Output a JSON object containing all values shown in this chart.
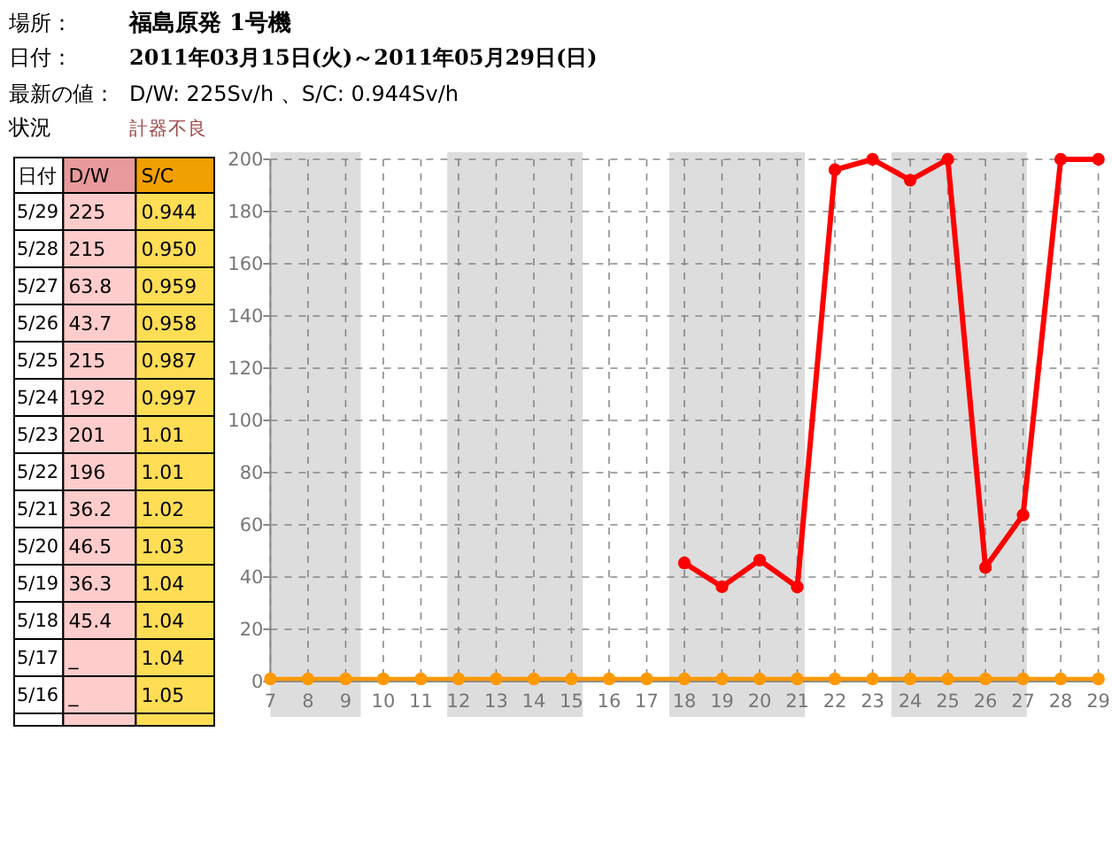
{
  "chart_data": [
    {
      "type": "other",
      "annotations": [
        "場所：",
        "福島原発 1号機",
        "日付：",
        "2011年03月15日(火)～2011年05月29日(日)",
        "最新の値：",
        "D/W: 225Sv/h 、S/C: 0.944Sv/h",
        "状況",
        "計器不良"
      ]
    },
    {
      "type": "heatmap",
      "ylabel": "日付",
      "categories": [
        "D/W",
        "S/C"
      ],
      "y_categories": [
        "5/29",
        "5/28",
        "5/27",
        "5/26",
        "5/25",
        "5/24",
        "5/23",
        "5/22",
        "5/21",
        "5/20",
        "5/19",
        "5/18",
        "5/17",
        "5/16"
      ],
      "cells": [
        [
          225,
          0.944
        ],
        [
          215,
          0.95
        ],
        [
          63.8,
          0.959
        ],
        [
          43.7,
          0.958
        ],
        [
          215,
          0.987
        ],
        [
          192,
          0.997
        ],
        [
          201,
          1.01
        ],
        [
          196,
          1.01
        ],
        [
          36.2,
          1.02
        ],
        [
          46.5,
          1.03
        ],
        [
          36.3,
          1.04
        ],
        [
          45.4,
          1.04
        ],
        [
          null,
          1.04
        ],
        [
          null,
          1.05
        ]
      ],
      "cell_labels": [
        [
          "225",
          "0.944"
        ],
        [
          "215",
          "0.950"
        ],
        [
          "63.8",
          "0.959"
        ],
        [
          "43.7",
          "0.958"
        ],
        [
          "215",
          "0.987"
        ],
        [
          "192",
          "0.997"
        ],
        [
          "201",
          "1.01"
        ],
        [
          "196",
          "1.01"
        ],
        [
          "36.2",
          "1.02"
        ],
        [
          "46.5",
          "1.03"
        ],
        [
          "36.3",
          "1.04"
        ],
        [
          "45.4",
          "1.04"
        ],
        [
          "_",
          "1.04"
        ],
        [
          "_",
          "1.05"
        ]
      ]
    },
    {
      "type": "line",
      "x": [
        7,
        8,
        9,
        10,
        11,
        12,
        13,
        14,
        15,
        16,
        17,
        18,
        19,
        20,
        21,
        22,
        23,
        24,
        25,
        26,
        27,
        28,
        29
      ],
      "series": [
        {
          "color": "#ff0000",
          "values": [
            null,
            null,
            null,
            null,
            null,
            null,
            null,
            null,
            null,
            null,
            null,
            45.4,
            36.3,
            46.5,
            36.2,
            196,
            200,
            192,
            200,
            43.7,
            63.8,
            200,
            200
          ]
        },
        {
          "color": "#ff9900",
          "values": [
            1,
            1,
            1,
            1,
            1,
            1,
            1,
            1,
            1,
            1,
            1,
            1,
            1,
            1,
            1,
            1,
            1,
            1,
            1,
            1,
            1,
            1,
            1
          ]
        }
      ],
      "xlim": [
        7,
        29
      ],
      "xticks": [
        7,
        8,
        9,
        10,
        11,
        12,
        13,
        14,
        15,
        16,
        17,
        18,
        19,
        20,
        21,
        22,
        23,
        24,
        25,
        26,
        27,
        28,
        29
      ],
      "ylim": [
        0,
        200
      ],
      "yticks": [
        0,
        20,
        40,
        60,
        80,
        100,
        120,
        140,
        160,
        180,
        200
      ],
      "grid": true,
      "marker": "circle",
      "line_style": "solid",
      "bands": [
        {
          "axis": "x",
          "from": 7,
          "to": 9.4,
          "color": "#dddddd"
        },
        {
          "axis": "x",
          "from": 11.7,
          "to": 15.3,
          "color": "#dddddd"
        },
        {
          "axis": "x",
          "from": 17.6,
          "to": 21.2,
          "color": "#dddddd"
        },
        {
          "axis": "x",
          "from": 23.5,
          "to": 27.1,
          "color": "#dddddd"
        }
      ]
    }
  ]
}
